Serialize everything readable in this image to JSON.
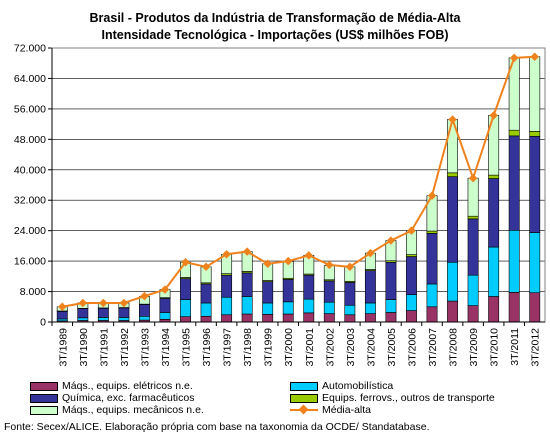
{
  "title_line1": "Brasil - Produtos da Indústria de Transformação de Média-Alta",
  "title_line2": "Intensidade Tecnológica - Importações (US$ milhões FOB)",
  "source": "Fonte: Secex/ALICE. Elaboração própria com base na taxonomia da OCDE/ Standatabase.",
  "chart_data": {
    "type": "bar",
    "stacked": true,
    "categories": [
      "3T/1989",
      "3T/1990",
      "3T/1991",
      "3T/1992",
      "3T/1993",
      "3T/1994",
      "3T/1995",
      "3T/1996",
      "3T/1997",
      "3T/1998",
      "3T/1999",
      "3T/2000",
      "3T/2001",
      "3T/2002",
      "3T/2003",
      "3T/2004",
      "3T/2005",
      "3T/2006",
      "3T/2007",
      "3T/2008",
      "3T/2009",
      "3T/2010",
      "3T/2011",
      "3T/2012"
    ],
    "ylim": [
      0,
      72000
    ],
    "yticks": [
      "0",
      "8.000",
      "16.000",
      "24.000",
      "32.000",
      "40.000",
      "48.000",
      "56.000",
      "64.000",
      "72.000"
    ],
    "grid": true,
    "series": [
      {
        "name": "Máqs., equips. elétricos n.e.",
        "color": "#993366",
        "values": [
          300,
          400,
          400,
          400,
          500,
          700,
          1400,
          1500,
          1900,
          2100,
          2000,
          2100,
          2400,
          2200,
          1900,
          2200,
          2500,
          3000,
          4000,
          5500,
          4300,
          6700,
          7800,
          7700
        ]
      },
      {
        "name": "Automobilística",
        "color": "#00ccff",
        "values": [
          500,
          700,
          800,
          800,
          1000,
          1800,
          4500,
          3500,
          4600,
          4600,
          3000,
          3200,
          3600,
          3000,
          2500,
          2800,
          3400,
          4200,
          6000,
          10200,
          8000,
          13000,
          16300,
          15800
        ]
      },
      {
        "name": "Química, exc. farmacêuticos",
        "color": "#333399",
        "values": [
          2000,
          2400,
          2400,
          2500,
          3100,
          3700,
          5500,
          5000,
          5800,
          6200,
          5600,
          5900,
          6300,
          5600,
          6000,
          8500,
          9800,
          10000,
          13300,
          22500,
          14800,
          18000,
          24800,
          25300
        ]
      },
      {
        "name": "Equips. ferrovs., outros de transporte",
        "color": "#99cc00",
        "values": [
          100,
          100,
          100,
          100,
          100,
          200,
          300,
          300,
          400,
          400,
          300,
          300,
          300,
          300,
          300,
          300,
          400,
          500,
          600,
          1000,
          700,
          900,
          1500,
          1300
        ]
      },
      {
        "name": "Máqs., equips. mecânicos n.e.",
        "color": "#ccffcc",
        "values": [
          1100,
          1400,
          1300,
          1200,
          2000,
          2100,
          4000,
          4200,
          5100,
          5200,
          4400,
          4400,
          4900,
          3700,
          3800,
          4300,
          5300,
          6300,
          9300,
          14000,
          10000,
          15700,
          19000,
          19600
        ]
      }
    ],
    "line": {
      "name": "Média-alta",
      "color": "#f0821e",
      "values": [
        4000,
        5000,
        5000,
        5000,
        6800,
        8500,
        15700,
        14500,
        17800,
        18500,
        15300,
        16000,
        17500,
        15000,
        14500,
        18100,
        21400,
        24000,
        33200,
        53200,
        37800,
        54300,
        69400,
        69700
      ]
    }
  }
}
